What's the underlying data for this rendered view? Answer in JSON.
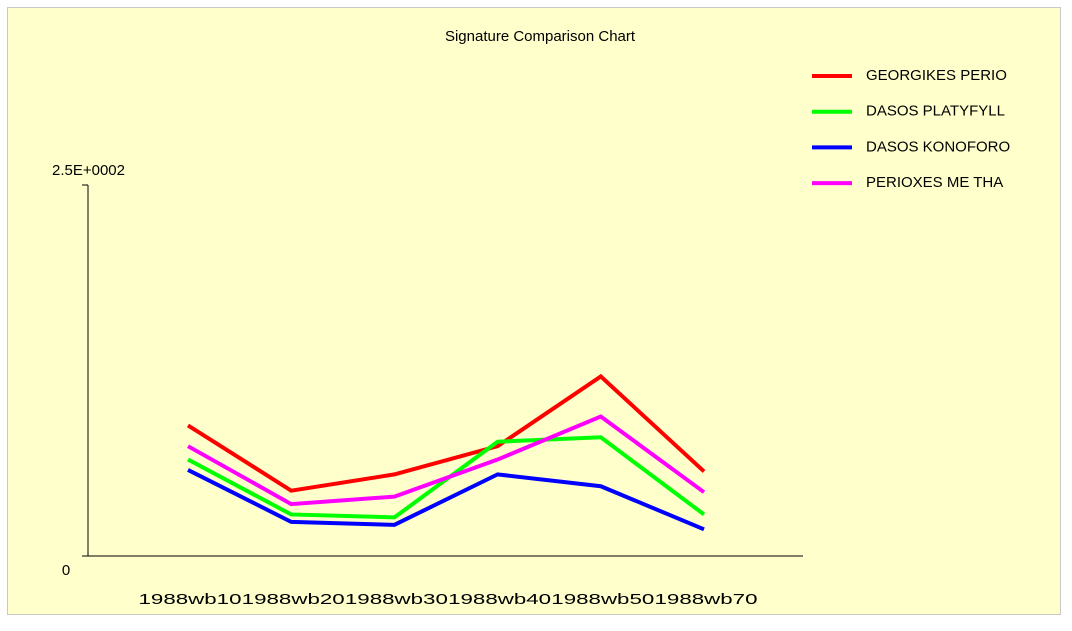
{
  "chart_data": {
    "type": "line",
    "title": "Signature Comparison Chart",
    "categories": [
      "1988wb10",
      "1988wb20",
      "1988wb30",
      "1988wb40",
      "1988wb50",
      "1988wb70"
    ],
    "series": [
      {
        "name": "GEORGIKES PERIO",
        "color": "#ff0000",
        "values": [
          88,
          44,
          55,
          74,
          121,
          57
        ]
      },
      {
        "name": "DASOS PLATYFYLL",
        "color": "#00ff00",
        "values": [
          65,
          28,
          26,
          77,
          80,
          28
        ]
      },
      {
        "name": "DASOS KONOFORO",
        "color": "#0000ff",
        "values": [
          58,
          23,
          21,
          55,
          47,
          18
        ]
      },
      {
        "name": "PERIOXES ME THA",
        "color": "#ff00ff",
        "values": [
          74,
          35,
          40,
          65,
          94,
          43
        ]
      }
    ],
    "ylim": [
      0,
      250
    ],
    "yticks": [
      0,
      {
        "value": 250,
        "label": "2.5E+0002"
      }
    ],
    "legend": "right"
  }
}
